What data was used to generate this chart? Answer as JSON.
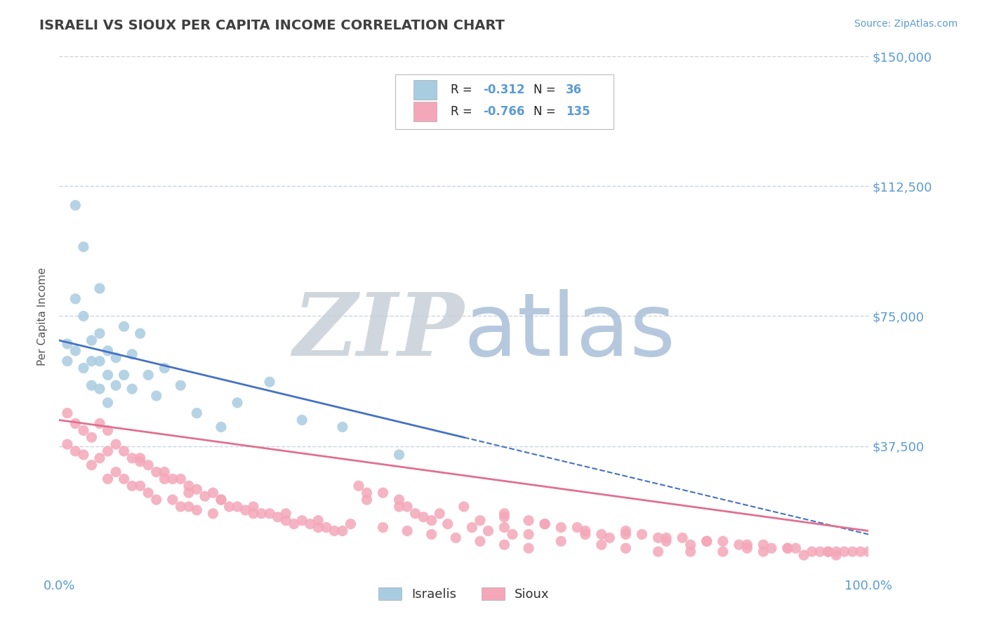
{
  "title": "ISRAELI VS SIOUX PER CAPITA INCOME CORRELATION CHART",
  "source": "Source: ZipAtlas.com",
  "ylabel": "Per Capita Income",
  "xlim": [
    0,
    1
  ],
  "ylim": [
    0,
    150000
  ],
  "israeli_R": -0.312,
  "israeli_N": 36,
  "sioux_R": -0.766,
  "sioux_N": 135,
  "israeli_color": "#a8cce0",
  "sioux_color": "#f4a7b9",
  "trend_israeli_color": "#4472c4",
  "trend_sioux_color": "#e07090",
  "watermark_ZIP_color": "#c8cfd8",
  "watermark_atlas_color": "#aabfd8",
  "background_color": "#ffffff",
  "grid_color": "#c8d4e0",
  "title_color": "#404040",
  "axis_label_color": "#555555",
  "tick_label_color": "#5b9bd5",
  "legend_label_color": "#222222",
  "israeli_x": [
    0.01,
    0.01,
    0.02,
    0.02,
    0.02,
    0.03,
    0.03,
    0.03,
    0.04,
    0.04,
    0.04,
    0.05,
    0.05,
    0.05,
    0.05,
    0.06,
    0.06,
    0.06,
    0.07,
    0.07,
    0.08,
    0.08,
    0.09,
    0.09,
    0.1,
    0.11,
    0.12,
    0.13,
    0.15,
    0.17,
    0.2,
    0.22,
    0.26,
    0.3,
    0.35,
    0.42
  ],
  "israeli_y": [
    67000,
    62000,
    107000,
    80000,
    65000,
    95000,
    75000,
    60000,
    68000,
    62000,
    55000,
    83000,
    70000,
    62000,
    54000,
    65000,
    58000,
    50000,
    63000,
    55000,
    72000,
    58000,
    64000,
    54000,
    70000,
    58000,
    52000,
    60000,
    55000,
    47000,
    43000,
    50000,
    56000,
    45000,
    43000,
    35000
  ],
  "sioux_x": [
    0.01,
    0.01,
    0.02,
    0.02,
    0.03,
    0.03,
    0.04,
    0.04,
    0.05,
    0.05,
    0.06,
    0.06,
    0.06,
    0.07,
    0.07,
    0.08,
    0.08,
    0.09,
    0.09,
    0.1,
    0.1,
    0.11,
    0.11,
    0.12,
    0.12,
    0.13,
    0.14,
    0.14,
    0.15,
    0.15,
    0.16,
    0.16,
    0.17,
    0.17,
    0.18,
    0.19,
    0.19,
    0.2,
    0.21,
    0.22,
    0.23,
    0.24,
    0.25,
    0.26,
    0.27,
    0.28,
    0.29,
    0.3,
    0.31,
    0.32,
    0.33,
    0.34,
    0.35,
    0.37,
    0.38,
    0.4,
    0.42,
    0.43,
    0.44,
    0.45,
    0.46,
    0.48,
    0.5,
    0.51,
    0.53,
    0.55,
    0.56,
    0.58,
    0.6,
    0.62,
    0.64,
    0.65,
    0.67,
    0.68,
    0.7,
    0.72,
    0.74,
    0.75,
    0.77,
    0.78,
    0.8,
    0.82,
    0.84,
    0.85,
    0.87,
    0.88,
    0.9,
    0.91,
    0.93,
    0.94,
    0.95,
    0.96,
    0.97,
    0.98,
    0.99,
    1.0,
    0.38,
    0.42,
    0.47,
    0.52,
    0.55,
    0.58,
    0.62,
    0.67,
    0.7,
    0.74,
    0.78,
    0.82,
    0.87,
    0.92,
    0.96,
    0.55,
    0.6,
    0.65,
    0.7,
    0.75,
    0.8,
    0.85,
    0.9,
    0.95,
    0.1,
    0.13,
    0.16,
    0.2,
    0.24,
    0.28,
    0.32,
    0.36,
    0.4,
    0.43,
    0.46,
    0.49,
    0.52,
    0.55,
    0.58
  ],
  "sioux_y": [
    47000,
    38000,
    44000,
    36000,
    42000,
    35000,
    40000,
    32000,
    44000,
    34000,
    42000,
    36000,
    28000,
    38000,
    30000,
    36000,
    28000,
    34000,
    26000,
    34000,
    26000,
    32000,
    24000,
    30000,
    22000,
    30000,
    28000,
    22000,
    28000,
    20000,
    26000,
    20000,
    25000,
    19000,
    23000,
    24000,
    18000,
    22000,
    20000,
    20000,
    19000,
    18000,
    18000,
    18000,
    17000,
    16000,
    15000,
    16000,
    15000,
    14000,
    14000,
    13000,
    13000,
    26000,
    22000,
    24000,
    22000,
    20000,
    18000,
    17000,
    16000,
    15000,
    20000,
    14000,
    13000,
    18000,
    12000,
    16000,
    15000,
    14000,
    14000,
    12000,
    12000,
    11000,
    13000,
    12000,
    11000,
    10000,
    11000,
    9000,
    10000,
    10000,
    9000,
    8000,
    9000,
    8000,
    8000,
    8000,
    7000,
    7000,
    7000,
    7000,
    7000,
    7000,
    7000,
    7000,
    24000,
    20000,
    18000,
    16000,
    14000,
    12000,
    10000,
    9000,
    8000,
    7000,
    7000,
    7000,
    7000,
    6000,
    6000,
    17000,
    15000,
    13000,
    12000,
    11000,
    10000,
    9000,
    8000,
    7000,
    33000,
    28000,
    24000,
    22000,
    20000,
    18000,
    16000,
    15000,
    14000,
    13000,
    12000,
    11000,
    10000,
    9000,
    8000
  ],
  "isr_trend_x0": 0.0,
  "isr_trend_y0": 68000,
  "isr_trend_x1": 0.5,
  "isr_trend_y1": 40000,
  "sioux_trend_x0": 0.0,
  "sioux_trend_y0": 45000,
  "sioux_trend_x1": 1.0,
  "sioux_trend_y1": 13000
}
